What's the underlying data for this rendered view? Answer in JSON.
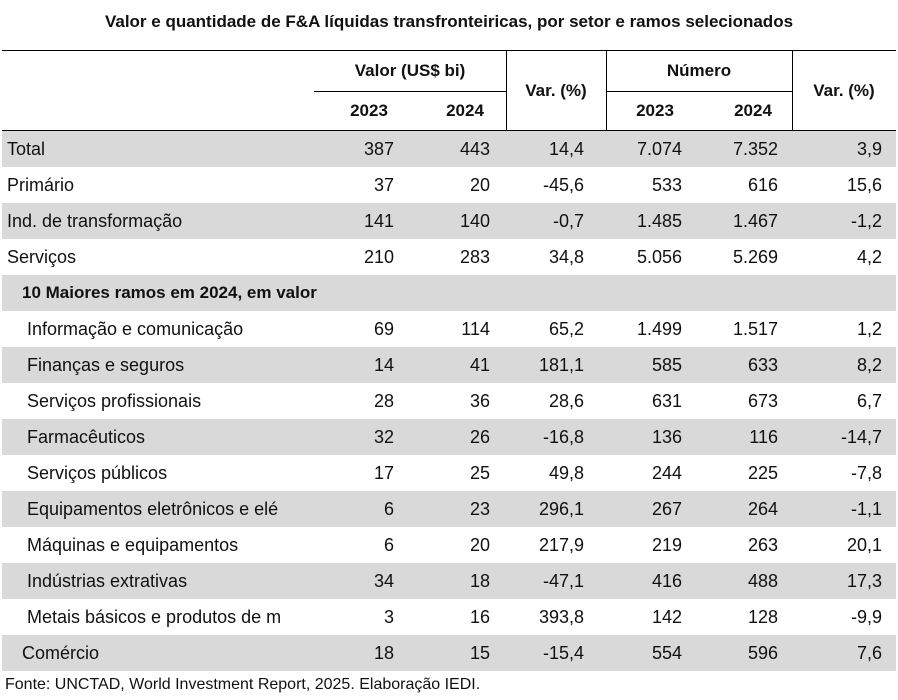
{
  "title": "Valor e quantidade de F&A líquidas transfronteiricas, por setor e ramos selecionados",
  "header": {
    "valor_group": "Valor (US$ bi)",
    "numero_group": "Número",
    "var_pct": "Var. (%)",
    "year_2023": "2023",
    "year_2024": "2024"
  },
  "rows": [
    {
      "label": "Total",
      "v2023": "387",
      "v2024": "443",
      "var_v": "14,4",
      "n2023": "7.074",
      "n2024": "7.352",
      "var_n": "3,9"
    },
    {
      "label": "Primário",
      "v2023": "37",
      "v2024": "20",
      "var_v": "-45,6",
      "n2023": "533",
      "n2024": "616",
      "var_n": "15,6"
    },
    {
      "label": "Ind. de transformação",
      "v2023": "141",
      "v2024": "140",
      "var_v": "-0,7",
      "n2023": "1.485",
      "n2024": "1.467",
      "var_n": "-1,2"
    },
    {
      "label": "Serviços",
      "v2023": "210",
      "v2024": "283",
      "var_v": "34,8",
      "n2023": "5.056",
      "n2024": "5.269",
      "var_n": "4,2"
    }
  ],
  "section_label": "10 Maiores ramos em 2024, em valor",
  "branches": [
    {
      "label": "Informação e comunicação",
      "v2023": "69",
      "v2024": "114",
      "var_v": "65,2",
      "n2023": "1.499",
      "n2024": "1.517",
      "var_n": "1,2"
    },
    {
      "label": "Finanças e seguros",
      "v2023": "14",
      "v2024": "41",
      "var_v": "181,1",
      "n2023": "585",
      "n2024": "633",
      "var_n": "8,2"
    },
    {
      "label": "Serviços profissionais",
      "v2023": "28",
      "v2024": "36",
      "var_v": "28,6",
      "n2023": "631",
      "n2024": "673",
      "var_n": "6,7"
    },
    {
      "label": "Farmacêuticos",
      "v2023": "32",
      "v2024": "26",
      "var_v": "-16,8",
      "n2023": "136",
      "n2024": "116",
      "var_n": "-14,7"
    },
    {
      "label": "Serviços públicos",
      "v2023": "17",
      "v2024": "25",
      "var_v": "49,8",
      "n2023": "244",
      "n2024": "225",
      "var_n": "-7,8"
    },
    {
      "label": "Equipamentos eletrônicos e elé",
      "v2023": "6",
      "v2024": "23",
      "var_v": "296,1",
      "n2023": "267",
      "n2024": "264",
      "var_n": "-1,1"
    },
    {
      "label": "Máquinas e equipamentos",
      "v2023": "6",
      "v2024": "20",
      "var_v": "217,9",
      "n2023": "219",
      "n2024": "263",
      "var_n": "20,1"
    },
    {
      "label": "Indústrias extrativas",
      "v2023": "34",
      "v2024": "18",
      "var_v": "-47,1",
      "n2023": "416",
      "n2024": "488",
      "var_n": "17,3"
    },
    {
      "label": "Metais básicos e produtos de m",
      "v2023": "3",
      "v2024": "16",
      "var_v": "393,8",
      "n2023": "142",
      "n2024": "128",
      "var_n": "-9,9"
    },
    {
      "label": "Comércio",
      "v2023": "18",
      "v2024": "15",
      "var_v": "-15,4",
      "n2023": "554",
      "n2024": "596",
      "var_n": "7,6"
    }
  ],
  "source": "Fonte: UNCTAD, World Investment Report, 2025. Elaboração IEDI."
}
